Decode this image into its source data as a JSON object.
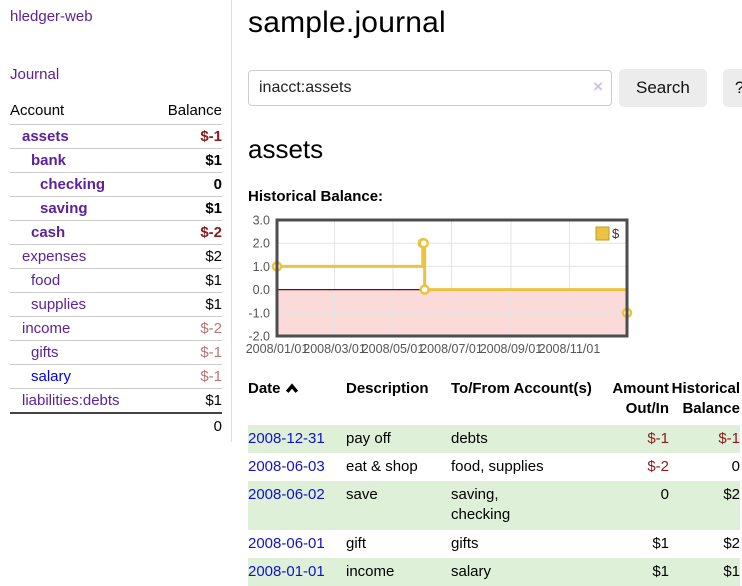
{
  "app": {
    "title": "hledger-web"
  },
  "sidebar": {
    "journal_link": "Journal",
    "accounts_table": {
      "headers": {
        "account": "Account",
        "balance": "Balance"
      },
      "rows": [
        {
          "account": "assets",
          "balance": "$-1",
          "indent": 0,
          "bold": true,
          "negative": true,
          "unvisited": false
        },
        {
          "account": "bank",
          "balance": "$1",
          "indent": 1,
          "bold": true,
          "negative": false,
          "unvisited": false
        },
        {
          "account": "checking",
          "balance": "0",
          "indent": 2,
          "bold": true,
          "negative": false,
          "unvisited": false
        },
        {
          "account": "saving",
          "balance": "$1",
          "indent": 2,
          "bold": true,
          "negative": false,
          "unvisited": false
        },
        {
          "account": "cash",
          "balance": "$-2",
          "indent": 1,
          "bold": true,
          "negative": true,
          "unvisited": false
        },
        {
          "account": "expenses",
          "balance": "$2",
          "indent": 0,
          "bold": false,
          "negative": false,
          "unvisited": false
        },
        {
          "account": "food",
          "balance": "$1",
          "indent": 1,
          "bold": false,
          "negative": false,
          "unvisited": false
        },
        {
          "account": "supplies",
          "balance": "$1",
          "indent": 1,
          "bold": false,
          "negative": false,
          "unvisited": false
        },
        {
          "account": "income",
          "balance": "$-2",
          "indent": 0,
          "bold": false,
          "negative": true,
          "unvisited": false
        },
        {
          "account": "gifts",
          "balance": "$-1",
          "indent": 1,
          "bold": false,
          "negative": true,
          "unvisited": false
        },
        {
          "account": "salary",
          "balance": "$-1",
          "indent": 1,
          "bold": false,
          "negative": true,
          "unvisited": true
        },
        {
          "account": "liabilities:debts",
          "balance": "$1",
          "indent": 0,
          "bold": false,
          "negative": false,
          "unvisited": false
        }
      ],
      "total": "0"
    }
  },
  "main": {
    "title": "sample.journal",
    "search": {
      "value": "inacct:assets",
      "clear_icon": "×",
      "button_label": "Search",
      "help_label": "?"
    },
    "account_heading": "assets",
    "chart_label": "Historical Balance:"
  },
  "chart_data": {
    "type": "line",
    "step": true,
    "title": "Historical Balance",
    "legend": "$",
    "legend_position": "top-right",
    "series": [
      {
        "name": "$",
        "color": "#edc240",
        "points": [
          [
            "2008-01-01",
            1
          ],
          [
            "2008-06-01",
            2
          ],
          [
            "2008-06-02",
            2
          ],
          [
            "2008-06-03",
            0
          ],
          [
            "2008-12-31",
            -1
          ]
        ]
      }
    ],
    "x_range": [
      "2008-01-01",
      "2008-12-31"
    ],
    "x_ticks": [
      "2008/01/01",
      "2008/03/01",
      "2008/05/01",
      "2008/07/01",
      "2008/09/01",
      "2008/11/01"
    ],
    "y_ticks": [
      3.0,
      2.0,
      1.0,
      0.0,
      -1.0,
      -2.0
    ],
    "ylim": [
      -2,
      3
    ],
    "grid": true,
    "negative_region_color": "#fbdada",
    "zero_line_color": "#8b0000",
    "border_color": "#4d4d4d",
    "tick_label_color": "#555"
  },
  "register": {
    "headers": {
      "date": "Date",
      "description": "Description",
      "accounts": "To/From Account(s)",
      "amount": "Amount Out/In",
      "balance": "Historical Balance"
    },
    "sort_icon": "chevron-up",
    "rows": [
      {
        "date": "2008-12-31",
        "description": "pay off",
        "accounts": [
          "debts"
        ],
        "amount": "$-1",
        "amount_negative": true,
        "balance": "$-1",
        "balance_negative": true
      },
      {
        "date": "2008-06-03",
        "description": "eat & shop",
        "accounts": [
          "food, supplies"
        ],
        "amount": "$-2",
        "amount_negative": true,
        "balance": "0",
        "balance_negative": false
      },
      {
        "date": "2008-06-02",
        "description": "save",
        "accounts": [
          "saving,",
          "checking"
        ],
        "amount": "0",
        "amount_negative": false,
        "balance": "$2",
        "balance_negative": false
      },
      {
        "date": "2008-06-01",
        "description": "gift",
        "accounts": [
          "gifts"
        ],
        "amount": "$1",
        "amount_negative": false,
        "balance": "$2",
        "balance_negative": false
      },
      {
        "date": "2008-01-01",
        "description": "income",
        "accounts": [
          "salary"
        ],
        "amount": "$1",
        "amount_negative": false,
        "balance": "$1",
        "balance_negative": false
      }
    ]
  },
  "colors": {
    "accent_purple": "#5b2299",
    "link_blue": "#1111cc",
    "unvisited_blue": "#0000ee",
    "negative_red": "#8b1a1a",
    "negative_soft_red": "#b37676",
    "row_green": "#dff0d8",
    "series_gold": "#edc240",
    "chart_negative_bg": "#fbdada",
    "zero_line_red": "#8b0000"
  }
}
